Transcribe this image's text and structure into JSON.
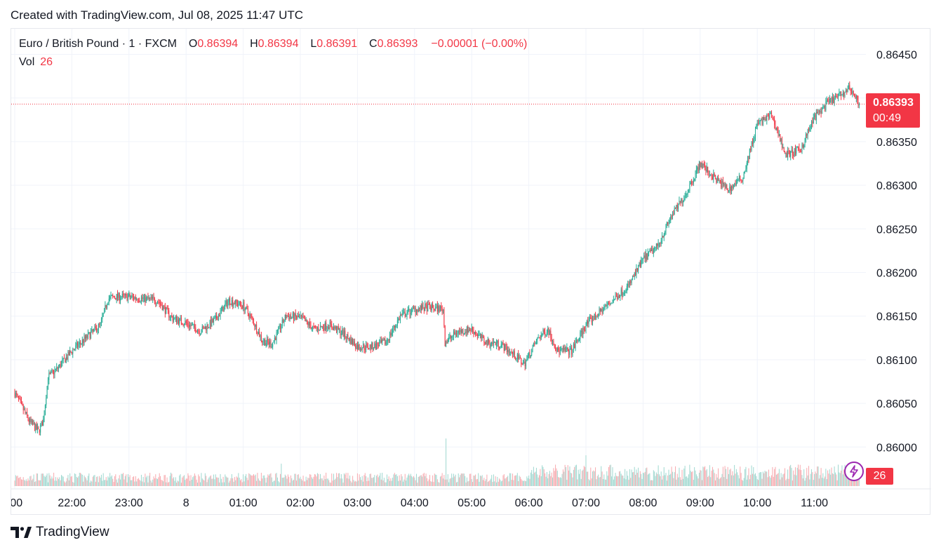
{
  "header": {
    "created_with": "Created with TradingView.com, Jul 08, 2025 11:47 UTC"
  },
  "legend": {
    "symbol": "Euro / British Pound · 1 · FXCM",
    "o_label": "O",
    "o_value": "0.86394",
    "h_label": "H",
    "h_value": "0.86394",
    "l_label": "L",
    "l_value": "0.86391",
    "c_label": "C",
    "c_value": "0.86393",
    "change": "−0.00001 (−0.00%)",
    "vol_label": "Vol",
    "vol_value": "26"
  },
  "price_tag": {
    "price": "0.86393",
    "countdown": "00:49"
  },
  "volume_tag": "26",
  "footer": {
    "brand": "TradingView"
  },
  "colors": {
    "up": "#22ab94",
    "down": "#f23645",
    "up_vol": "#9fd8d0",
    "down_vol": "#f7a9ae",
    "grid": "#f0f3fa",
    "last_line": "#f23645",
    "alert": "#9c27b0"
  },
  "chart_data": {
    "type": "candlestick",
    "title": "Euro / British Pound · 1 · FXCM",
    "interval": "1 minute",
    "y_ticks": [
      "0.86450",
      "0.86400",
      "0.86350",
      "0.86300",
      "0.86250",
      "0.86200",
      "0.86150",
      "0.86100",
      "0.86050",
      "0.86000"
    ],
    "ylim": [
      0.85955,
      0.86475
    ],
    "x_ticks": [
      ":00",
      "22:00",
      "23:00",
      "8",
      "01:00",
      "02:00",
      "03:00",
      "04:00",
      "05:00",
      "06:00",
      "07:00",
      "08:00",
      "09:00",
      "10:00",
      "11:00"
    ],
    "x_start": "21:00",
    "x_end": "11:47",
    "last_price": 0.86393,
    "close_path": [
      {
        "t": "21:00",
        "v": 0.86062
      },
      {
        "t": "21:08",
        "v": 0.86045
      },
      {
        "t": "21:15",
        "v": 0.8603
      },
      {
        "t": "21:25",
        "v": 0.86018
      },
      {
        "t": "21:30",
        "v": 0.8603
      },
      {
        "t": "21:35",
        "v": 0.8608
      },
      {
        "t": "21:40",
        "v": 0.86085
      },
      {
        "t": "21:45",
        "v": 0.8609
      },
      {
        "t": "22:00",
        "v": 0.8611
      },
      {
        "t": "22:15",
        "v": 0.86125
      },
      {
        "t": "22:30",
        "v": 0.8614
      },
      {
        "t": "22:38",
        "v": 0.8617
      },
      {
        "t": "22:45",
        "v": 0.86172
      },
      {
        "t": "23:00",
        "v": 0.86172
      },
      {
        "t": "23:15",
        "v": 0.8617
      },
      {
        "t": "23:30",
        "v": 0.86168
      },
      {
        "t": "23:45",
        "v": 0.86148
      },
      {
        "t": "00:00",
        "v": 0.86142
      },
      {
        "t": "00:15",
        "v": 0.86133
      },
      {
        "t": "00:30",
        "v": 0.86145
      },
      {
        "t": "00:45",
        "v": 0.86168
      },
      {
        "t": "01:00",
        "v": 0.86162
      },
      {
        "t": "01:10",
        "v": 0.86145
      },
      {
        "t": "01:20",
        "v": 0.86122
      },
      {
        "t": "01:30",
        "v": 0.86118
      },
      {
        "t": "01:45",
        "v": 0.8615
      },
      {
        "t": "02:00",
        "v": 0.86148
      },
      {
        "t": "02:15",
        "v": 0.86135
      },
      {
        "t": "02:30",
        "v": 0.8614
      },
      {
        "t": "02:45",
        "v": 0.8613
      },
      {
        "t": "03:00",
        "v": 0.86115
      },
      {
        "t": "03:15",
        "v": 0.86115
      },
      {
        "t": "03:30",
        "v": 0.8612
      },
      {
        "t": "03:45",
        "v": 0.8615
      },
      {
        "t": "04:00",
        "v": 0.86158
      },
      {
        "t": "04:15",
        "v": 0.8616
      },
      {
        "t": "04:30",
        "v": 0.86158
      },
      {
        "t": "04:32",
        "v": 0.8612
      },
      {
        "t": "04:45",
        "v": 0.86132
      },
      {
        "t": "05:00",
        "v": 0.86135
      },
      {
        "t": "05:15",
        "v": 0.8612
      },
      {
        "t": "05:30",
        "v": 0.86118
      },
      {
        "t": "05:45",
        "v": 0.86105
      },
      {
        "t": "05:55",
        "v": 0.86095
      },
      {
        "t": "06:10",
        "v": 0.86125
      },
      {
        "t": "06:20",
        "v": 0.86135
      },
      {
        "t": "06:30",
        "v": 0.8611
      },
      {
        "t": "06:45",
        "v": 0.8611
      },
      {
        "t": "07:00",
        "v": 0.8614
      },
      {
        "t": "07:15",
        "v": 0.86155
      },
      {
        "t": "07:30",
        "v": 0.8617
      },
      {
        "t": "07:45",
        "v": 0.86185
      },
      {
        "t": "08:00",
        "v": 0.86215
      },
      {
        "t": "08:15",
        "v": 0.8623
      },
      {
        "t": "08:30",
        "v": 0.86265
      },
      {
        "t": "08:45",
        "v": 0.8629
      },
      {
        "t": "09:00",
        "v": 0.86325
      },
      {
        "t": "09:15",
        "v": 0.86308
      },
      {
        "t": "09:30",
        "v": 0.86295
      },
      {
        "t": "09:45",
        "v": 0.8631
      },
      {
        "t": "10:00",
        "v": 0.8637
      },
      {
        "t": "10:15",
        "v": 0.8638
      },
      {
        "t": "10:30",
        "v": 0.86335
      },
      {
        "t": "10:45",
        "v": 0.8634
      },
      {
        "t": "11:00",
        "v": 0.86378
      },
      {
        "t": "11:15",
        "v": 0.86395
      },
      {
        "t": "11:30",
        "v": 0.86405
      },
      {
        "t": "11:37",
        "v": 0.86412
      },
      {
        "t": "11:47",
        "v": 0.86393
      }
    ],
    "volume_scale_max": 90,
    "volume_spikes": [
      {
        "t": "04:33",
        "v": 85
      },
      {
        "t": "07:00",
        "v": 55
      },
      {
        "t": "01:40",
        "v": 40
      }
    ]
  }
}
